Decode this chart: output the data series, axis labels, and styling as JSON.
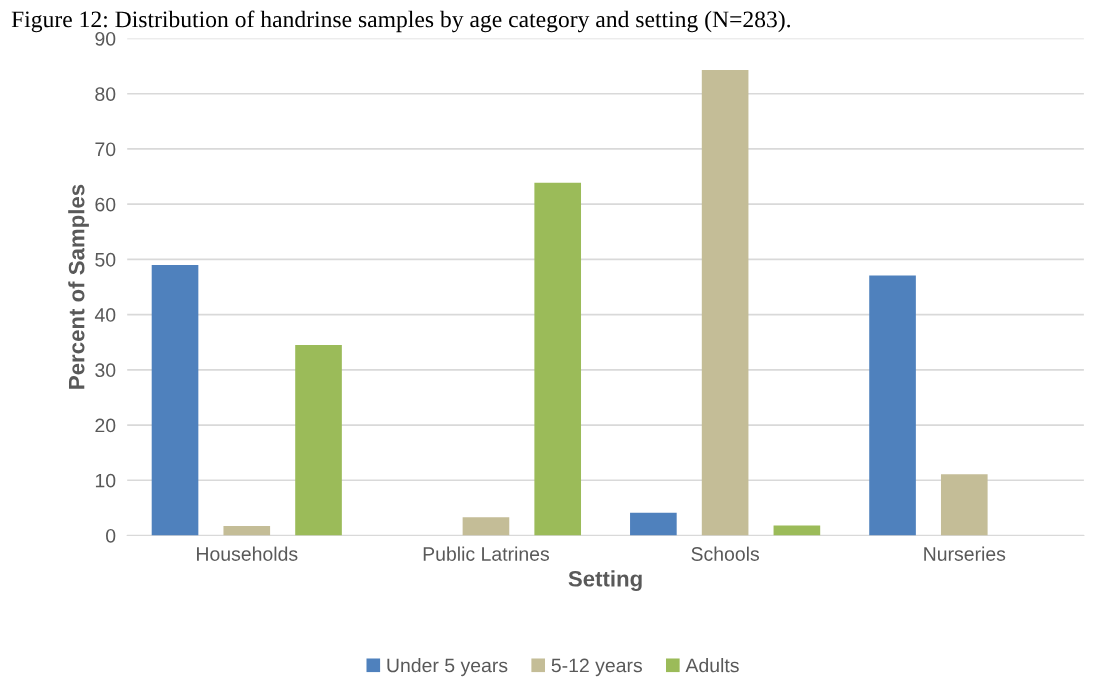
{
  "chart_data": {
    "type": "bar",
    "title": "Figure 12: Distribution of handrinse samples by age category and setting (N=283).",
    "xlabel": "Setting",
    "ylabel": "Percent of Samples",
    "categories": [
      "Households",
      "Public Latrines",
      "Schools",
      "Nurseries"
    ],
    "series": [
      {
        "name": "Under 5 years",
        "color": "#4f81bd",
        "values": [
          49.0,
          0,
          4.1,
          47.1
        ]
      },
      {
        "name": "5-12 years",
        "color": "#c4bd97",
        "values": [
          1.7,
          3.3,
          84.3,
          11.1
        ]
      },
      {
        "name": "Adults",
        "color": "#9bbb59",
        "values": [
          34.5,
          63.9,
          1.8,
          0
        ]
      }
    ],
    "ylim": [
      0,
      90
    ],
    "yticks": [
      0,
      10,
      20,
      30,
      40,
      50,
      60,
      70,
      80,
      90
    ],
    "grid": "y",
    "legend": "bottom"
  }
}
